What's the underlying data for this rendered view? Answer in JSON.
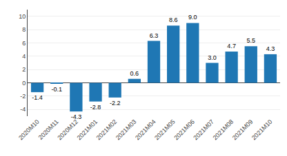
{
  "chart_data": {
    "type": "bar",
    "categories": [
      "2020M10",
      "2020M11",
      "2020M12",
      "2021M01",
      "2021M02",
      "2021M03",
      "2021M04",
      "2021M05",
      "2021M06",
      "2021M07",
      "2021M08",
      "2021M09",
      "2021M10"
    ],
    "values": [
      -1.4,
      -0.1,
      -4.3,
      -2.8,
      -2.2,
      0.6,
      6.3,
      8.6,
      9.0,
      3.0,
      4.7,
      5.5,
      4.3
    ],
    "value_labels": [
      "-1.4",
      "-0.1",
      "-4.3",
      "-2.8",
      "-2.2",
      "0.6",
      "6.3",
      "8.6",
      "9.0",
      "3.0",
      "4.7",
      "5.5",
      "4.3"
    ],
    "color": "#1f77b4",
    "ylim": [
      -5,
      11
    ],
    "yticks": [
      -4,
      -2,
      0,
      2,
      4,
      6,
      8,
      10
    ],
    "grid": true,
    "data_labels": true
  }
}
